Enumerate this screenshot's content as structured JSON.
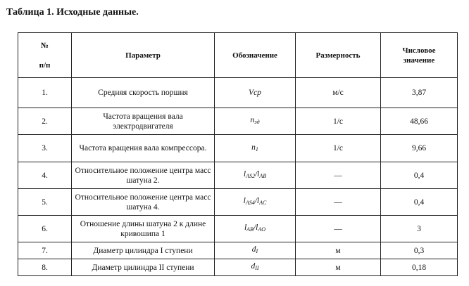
{
  "caption": "Таблица 1. Исходные данные.",
  "headers": {
    "num": [
      "№",
      "п/п"
    ],
    "param": "Параметр",
    "symbol": "Обозначение",
    "unit": "Размерность",
    "value": [
      "Числовое",
      "значение"
    ]
  },
  "rows": [
    {
      "num": "1.",
      "param": "Средняя скорость поршня",
      "symbol": "Vcp",
      "sub": "",
      "unit": "м/с",
      "value": "3,87"
    },
    {
      "num": "2.",
      "param": "Частота вращения вала электродвигателя",
      "symbol": "n",
      "sub": "эд",
      "unit": "1/с",
      "value": "48,66"
    },
    {
      "num": "3.",
      "param": "Частота вращения вала компрессора.",
      "symbol": "n",
      "sub": "1",
      "unit": "1/с",
      "value": "9,66"
    },
    {
      "num": "4.",
      "param": "Относительное положение центра масс шатуна 2.",
      "symbol": "l",
      "sub": "AS2",
      "symbol2": "/l",
      "sub2": "AB",
      "unit": "—",
      "value": "0,4"
    },
    {
      "num": "5.",
      "param": "Относительное положение центра масс шатуна 4.",
      "symbol": "l",
      "sub": "AS4",
      "symbol2": "/l",
      "sub2": "AC",
      "unit": "—",
      "value": "0,4"
    },
    {
      "num": "6.",
      "param": "Отношение длины шатуна 2 к длине кривошипа 1",
      "symbol": "l",
      "sub": "AB",
      "symbol2": "/l",
      "sub2": "AO",
      "unit": "—",
      "value": "3"
    },
    {
      "num": "7.",
      "param": "Диаметр цилиндра I ступени",
      "symbol": "d",
      "sub": "I",
      "unit": "м",
      "value": "0,3"
    },
    {
      "num": "8.",
      "param": "Диаметр цилиндра II ступени",
      "symbol": "d",
      "sub": "II",
      "unit": "м",
      "value": "0,18"
    }
  ]
}
